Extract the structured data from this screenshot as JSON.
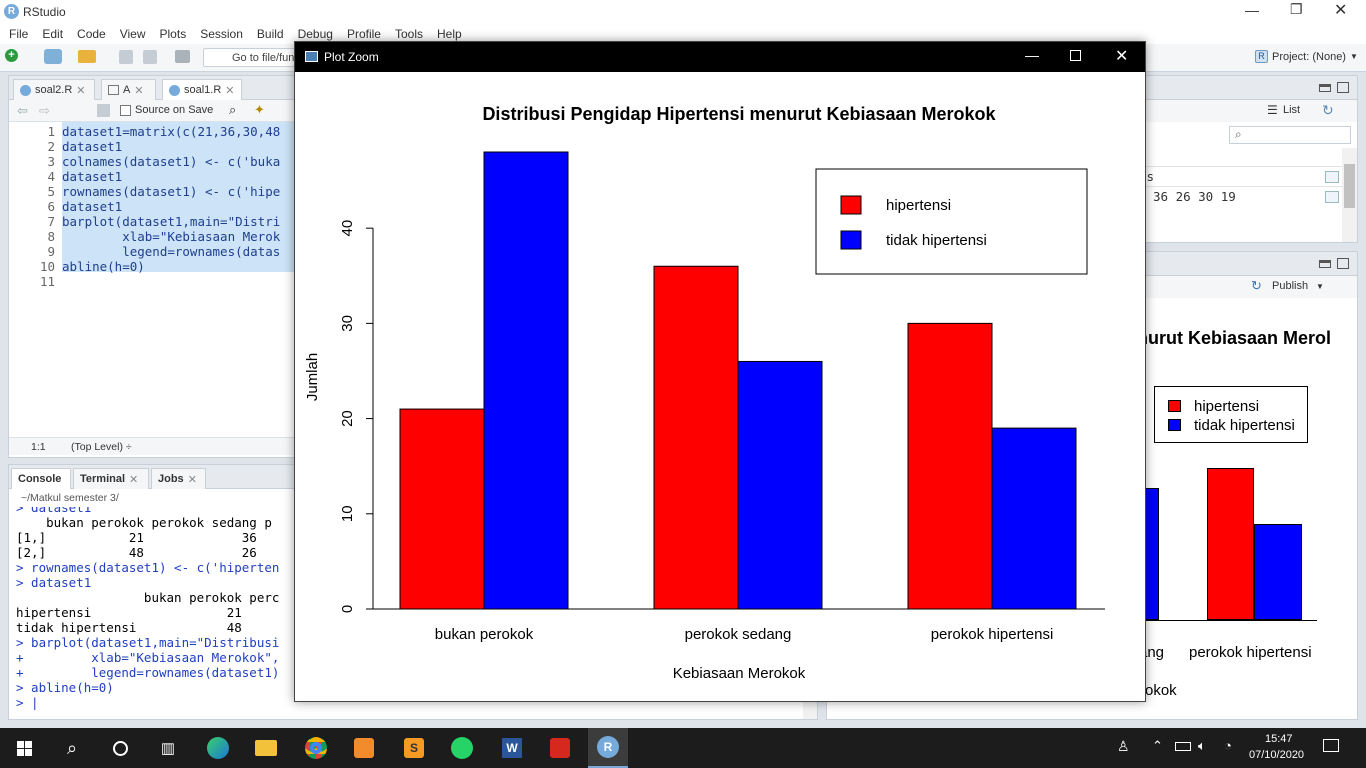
{
  "app": {
    "title": "RStudio",
    "project": "Project: (None)"
  },
  "menu": [
    "File",
    "Edit",
    "Code",
    "View",
    "Plots",
    "Session",
    "Build",
    "Debug",
    "Profile",
    "Tools",
    "Help"
  ],
  "toolbar": {
    "goto_placeholder": "Go to file/fun"
  },
  "editor": {
    "tabs": [
      "soal2.R",
      "A",
      "soal1.R"
    ],
    "source_on_save": "Source on Save",
    "lines": [
      "dataset1=matrix(c(21,36,30,48",
      "dataset1",
      "colnames(dataset1) <- c('buka",
      "dataset1",
      "rownames(dataset1) <- c('hipe",
      "dataset1",
      "barplot(dataset1,main=\"Distri",
      "        xlab=\"Kebiasaan Merok",
      "        legend=rownames(datas",
      "abline(h=0)",
      ""
    ],
    "status_pos": "1:1",
    "status_scope": "(Top Level) ÷"
  },
  "console": {
    "tabs": [
      "Console",
      "Terminal",
      "Jobs"
    ],
    "path": "~/Matkul semester 3/",
    "lines": [
      {
        "t": "> dataset1",
        "cmd": true
      },
      {
        "t": "    bukan perokok perokok sedang p",
        "cmd": false
      },
      {
        "t": "[1,]           21             36",
        "cmd": false
      },
      {
        "t": "[2,]           48             26",
        "cmd": false
      },
      {
        "t": "> rownames(dataset1) <- c('hiperten",
        "cmd": true
      },
      {
        "t": "> dataset1",
        "cmd": true
      },
      {
        "t": "                 bukan perokok perc",
        "cmd": false
      },
      {
        "t": "hipertensi                  21",
        "cmd": false
      },
      {
        "t": "tidak hipertensi            48",
        "cmd": false
      },
      {
        "t": "> barplot(dataset1,main=\"Distribusi",
        "cmd": true
      },
      {
        "t": "+         xlab=\"Kebiasaan Merokok\",",
        "cmd": true
      },
      {
        "t": "+         legend=rownames(dataset1)",
        "cmd": true
      },
      {
        "t": "> abline(h=0)",
        "cmd": true
      },
      {
        "t": "> |",
        "cmd": true
      }
    ]
  },
  "env": {
    "list_label": "List",
    "row1": "es",
    "row2": "36 26 30 19"
  },
  "plots_pane": {
    "publish": "Publish",
    "title_fragment": "nurut Kebiasaan Merol",
    "legend": [
      "hipertensi",
      "tidak hipertensi"
    ],
    "xlabels": [
      "ang",
      "perokok hipertensi"
    ],
    "xlabel_fragment": "okok"
  },
  "zoom": {
    "title": "Plot Zoom"
  },
  "chart_data": {
    "type": "bar",
    "title": "Distribusi Pengidap Hipertensi menurut Kebiasaan Merokok",
    "xlabel": "Kebiasaan Merokok",
    "ylabel": "Jumlah",
    "categories": [
      "bukan perokok",
      "perokok sedang",
      "perokok hipertensi"
    ],
    "series": [
      {
        "name": "hipertensi",
        "values": [
          21,
          36,
          30
        ],
        "color": "#ff0000"
      },
      {
        "name": "tidak hipertensi",
        "values": [
          48,
          26,
          19
        ],
        "color": "#0000ff"
      }
    ],
    "ylim": [
      0,
      48
    ],
    "yticks": [
      0,
      10,
      20,
      30,
      40
    ],
    "legend_position": "top-right",
    "grid": false
  },
  "taskbar": {
    "time": "15:47",
    "date": "07/10/2020"
  }
}
